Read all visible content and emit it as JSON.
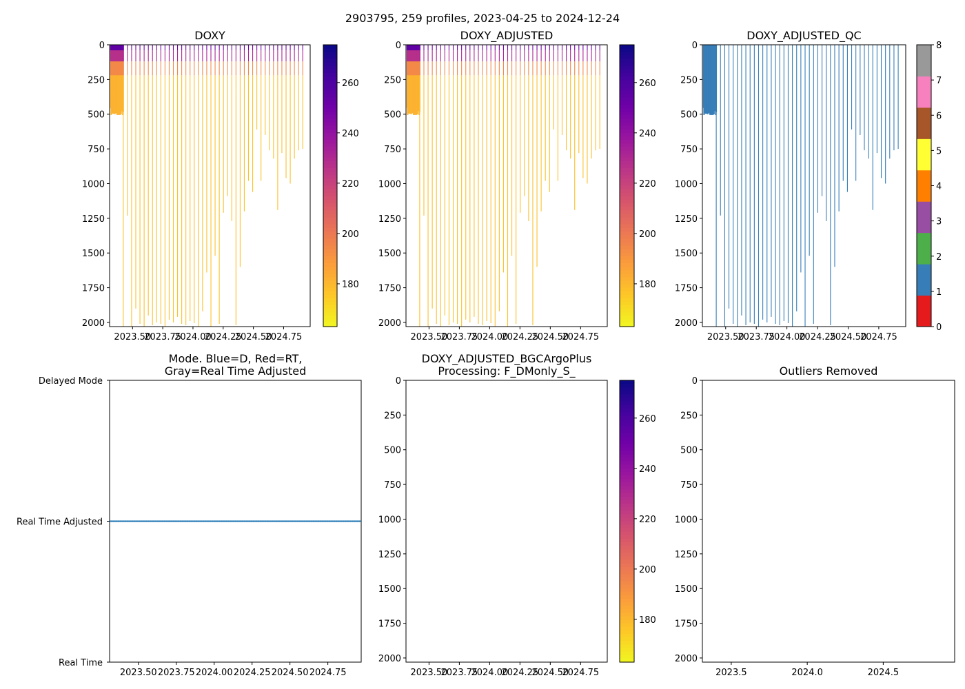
{
  "figure": {
    "suptitle": "2903795, 259 profiles, 2023-04-25 to 2024-12-24"
  },
  "colors": {
    "plasma": [
      "#0d0887",
      "#46039f",
      "#7201a8",
      "#9c179e",
      "#bd3786",
      "#d8576b",
      "#ed7953",
      "#fb9f3a",
      "#fdca26",
      "#f0f921"
    ],
    "mode_line": "#1f77b4",
    "qc_classes": [
      "#e41a1c",
      "#377eb8",
      "#4daf4a",
      "#984ea3",
      "#ff7f00",
      "#ffff33",
      "#a65628",
      "#f781bf",
      "#999999"
    ]
  },
  "chart_data": [
    {
      "id": "doxy",
      "type": "heatmap",
      "title": "DOXY",
      "xlim": [
        2023.31,
        2024.97
      ],
      "ylim": [
        2030,
        0
      ],
      "xticks": [
        2023.5,
        2023.75,
        2024.0,
        2024.25,
        2024.5,
        2024.75
      ],
      "xtick_labels": [
        "2023.50",
        "2023.75",
        "2024.00",
        "2024.25",
        "2024.50",
        "2024.75"
      ],
      "yticks": [
        0,
        250,
        500,
        750,
        1000,
        1250,
        1500,
        1750,
        2000
      ],
      "ytick_labels": [
        "0",
        "250",
        "500",
        "750",
        "1000",
        "1250",
        "1500",
        "1750",
        "2000"
      ],
      "colorbar": {
        "range": [
          163,
          275
        ],
        "ticks": [
          180,
          200,
          220,
          240,
          260
        ],
        "tick_labels": [
          "180",
          "200",
          "220",
          "240",
          "260"
        ]
      },
      "profiles_note": "dense shallow profiles (~480 m) early 2023, later sparse profiles to max depth below"
    },
    {
      "id": "doxy_adjusted",
      "type": "heatmap",
      "title": "DOXY_ADJUSTED",
      "xlim": [
        2023.31,
        2024.97
      ],
      "ylim": [
        2030,
        0
      ],
      "xticks": [
        2023.5,
        2023.75,
        2024.0,
        2024.25,
        2024.5,
        2024.75
      ],
      "xtick_labels": [
        "2023.50",
        "2023.75",
        "2024.00",
        "2024.25",
        "2024.50",
        "2024.75"
      ],
      "yticks": [
        0,
        250,
        500,
        750,
        1000,
        1250,
        1500,
        1750,
        2000
      ],
      "ytick_labels": [
        "0",
        "250",
        "500",
        "750",
        "1000",
        "1250",
        "1500",
        "1750",
        "2000"
      ],
      "colorbar": {
        "range": [
          163,
          275
        ],
        "ticks": [
          180,
          200,
          220,
          240,
          260
        ],
        "tick_labels": [
          "180",
          "200",
          "220",
          "240",
          "260"
        ]
      }
    },
    {
      "id": "doxy_adjusted_qc",
      "type": "heatmap",
      "title": "DOXY_ADJUSTED_QC",
      "xlim": [
        2023.31,
        2024.97
      ],
      "ylim": [
        2030,
        0
      ],
      "xticks": [
        2023.5,
        2023.75,
        2024.0,
        2024.25,
        2024.5,
        2024.75
      ],
      "xtick_labels": [
        "2023.50",
        "2023.75",
        "2024.00",
        "2024.25",
        "2024.50",
        "2024.75"
      ],
      "yticks": [
        0,
        250,
        500,
        750,
        1000,
        1250,
        1500,
        1750,
        2000
      ],
      "ytick_labels": [
        "0",
        "250",
        "500",
        "750",
        "1000",
        "1250",
        "1500",
        "1750",
        "2000"
      ],
      "qc_value_shown": 1,
      "colorbar": {
        "range": [
          0,
          8
        ],
        "ticks": [
          0,
          1,
          2,
          3,
          4,
          5,
          6,
          7,
          8
        ],
        "tick_labels": [
          "0",
          "1",
          "2",
          "3",
          "4",
          "5",
          "6",
          "7",
          "8"
        ]
      }
    },
    {
      "id": "mode",
      "type": "line",
      "title_lines": [
        "Mode. Blue=D, Red=RT,",
        "Gray=Real Time Adjusted"
      ],
      "xlim": [
        2023.31,
        2024.97
      ],
      "ylim": [
        0,
        2
      ],
      "xticks": [
        2023.5,
        2023.75,
        2024.0,
        2024.25,
        2024.5,
        2024.75
      ],
      "xtick_labels": [
        "2023.50",
        "2023.75",
        "2024.00",
        "2024.25",
        "2024.50",
        "2024.75"
      ],
      "ytick_labels": [
        "Delayed Mode",
        "Real Time Adjusted",
        "Real Time"
      ],
      "series": [
        {
          "name": "mode",
          "value": 1,
          "label": "Real Time Adjusted"
        }
      ]
    },
    {
      "id": "bgcargoplus",
      "type": "heatmap",
      "title_lines": [
        "DOXY_ADJUSTED_BGCArgoPlus",
        "Processing: F_DMonly_S_"
      ],
      "xlim": [
        2023.31,
        2024.97
      ],
      "ylim": [
        2030,
        0
      ],
      "xticks": [
        2023.5,
        2023.75,
        2024.0,
        2024.25,
        2024.5,
        2024.75
      ],
      "xtick_labels": [
        "2023.50",
        "2023.75",
        "2024.00",
        "2024.25",
        "2024.50",
        "2024.75"
      ],
      "yticks": [
        0,
        250,
        500,
        750,
        1000,
        1250,
        1500,
        1750,
        2000
      ],
      "ytick_labels": [
        "0",
        "250",
        "500",
        "750",
        "1000",
        "1250",
        "1500",
        "1750",
        "2000"
      ],
      "colorbar": {
        "range": [
          163,
          275
        ],
        "ticks": [
          180,
          200,
          220,
          240,
          260
        ],
        "tick_labels": [
          "180",
          "200",
          "220",
          "240",
          "260"
        ]
      },
      "empty": true
    },
    {
      "id": "outliers",
      "type": "scatter",
      "title": "Outliers Removed",
      "xlim": [
        2023.31,
        2024.97
      ],
      "ylim": [
        2030,
        0
      ],
      "xticks": [
        2023.5,
        2024.0,
        2024.5
      ],
      "xtick_labels": [
        "2023.5",
        "2024.0",
        "2024.5"
      ],
      "yticks": [
        0,
        250,
        500,
        750,
        1000,
        1250,
        1500,
        1750,
        2000
      ],
      "ytick_labels": [
        "0",
        "250",
        "500",
        "750",
        "1000",
        "1250",
        "1500",
        "1750",
        "2000"
      ],
      "empty": true
    }
  ]
}
